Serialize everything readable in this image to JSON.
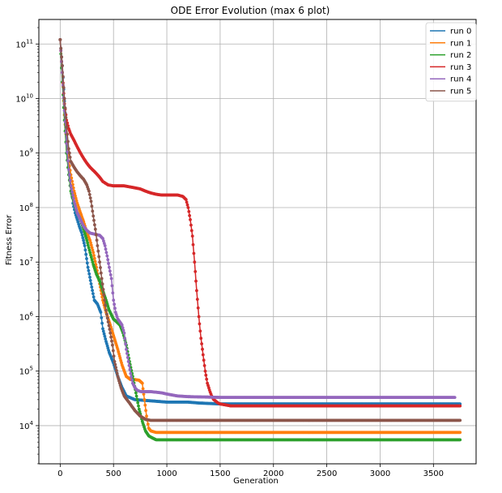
{
  "chart_data": {
    "type": "line",
    "title": "ODE Error Evolution (max 6 plot)",
    "xlabel": "Generation",
    "ylabel": "Fitness Error",
    "xlim": [
      -200,
      3900
    ],
    "ylim_log10": [
      3.3,
      11.45
    ],
    "y_scale": "log",
    "grid": true,
    "legend_position": "top-right",
    "xticks": [
      0,
      500,
      1000,
      1500,
      2000,
      2500,
      3000,
      3500
    ],
    "xtick_labels": [
      "0",
      "500",
      "1000",
      "1500",
      "2000",
      "2500",
      "3000",
      "3500"
    ],
    "yticks_exponent": [
      4,
      5,
      6,
      7,
      8,
      9,
      10,
      11
    ],
    "ytick_base": "10",
    "series": [
      {
        "name": "run 0",
        "color": "#1f77b4",
        "x": [
          0,
          20,
          40,
          60,
          80,
          100,
          120,
          140,
          160,
          180,
          200,
          230,
          260,
          290,
          320,
          350,
          380,
          400,
          430,
          460,
          500,
          540,
          580,
          620,
          700,
          800,
          900,
          1000,
          1100,
          1200,
          1300,
          1500,
          2000,
          2500,
          3000,
          3500,
          3750
        ],
        "y": [
          120000000000.0,
          40000000000.0,
          9000000000.0,
          2000000000.0,
          600000000.0,
          250000000.0,
          120000000.0,
          80000000.0,
          60000000.0,
          45000000.0,
          35000000.0,
          20000000.0,
          8000000.0,
          4000000.0,
          2000000.0,
          1700000.0,
          1200000.0,
          600000.0,
          350000.0,
          220000.0,
          140000.0,
          80000.0,
          50000.0,
          35000.0,
          30000.0,
          29000.0,
          28000.0,
          27000.0,
          27000.0,
          27000.0,
          26000.0,
          25000.0,
          25000.0,
          25000.0,
          25000.0,
          25000.0,
          25000.0
        ]
      },
      {
        "name": "run 1",
        "color": "#ff7f0e",
        "x": [
          0,
          20,
          40,
          60,
          80,
          100,
          130,
          160,
          190,
          220,
          250,
          280,
          310,
          340,
          370,
          400,
          430,
          470,
          500,
          540,
          580,
          620,
          660,
          700,
          740,
          770,
          790,
          810,
          830,
          850,
          900,
          1000,
          1500,
          2000,
          2500,
          3000,
          3500,
          3750
        ],
        "y": [
          120000000000.0,
          30000000000.0,
          5000000000.0,
          1500000000.0,
          700000000.0,
          400000000.0,
          200000000.0,
          120000000.0,
          80000000.0,
          55000000.0,
          35000000.0,
          25000000.0,
          15000000.0,
          8000000.0,
          4000000.0,
          2000000.0,
          1200000.0,
          700000.0,
          450000.0,
          250000.0,
          130000.0,
          80000.0,
          70000.0,
          70000.0,
          68000.0,
          60000.0,
          30000.0,
          15000.0,
          9000.0,
          8000.0,
          7500.0,
          7500.0,
          7500.0,
          7500.0,
          7500.0,
          7500.0,
          7500.0,
          7500.0
        ]
      },
      {
        "name": "run 2",
        "color": "#2ca02c",
        "x": [
          0,
          20,
          40,
          60,
          80,
          100,
          130,
          160,
          190,
          220,
          250,
          280,
          310,
          340,
          370,
          400,
          430,
          460,
          500,
          530,
          560,
          590,
          620,
          650,
          680,
          710,
          740,
          770,
          800,
          830,
          860,
          900,
          950,
          1000,
          1500,
          2000,
          2500,
          3000,
          3500,
          3750
        ],
        "y": [
          120000000000.0,
          20000000000.0,
          4000000000.0,
          1000000000.0,
          400000000.0,
          200000000.0,
          120000000.0,
          80000000.0,
          60000000.0,
          40000000.0,
          25000000.0,
          15000000.0,
          9000000.0,
          6000000.0,
          4500000.0,
          3000000.0,
          2000000.0,
          1300000.0,
          900000.0,
          800000.0,
          700000.0,
          500000.0,
          300000.0,
          150000.0,
          80000.0,
          40000.0,
          20000.0,
          12000.0,
          8000.0,
          6500.0,
          6000.0,
          5500.0,
          5500.0,
          5500.0,
          5500.0,
          5500.0,
          5500.0,
          5500.0,
          5500.0,
          5500.0
        ]
      },
      {
        "name": "run 3",
        "color": "#d62728",
        "x": [
          0,
          20,
          40,
          60,
          80,
          100,
          130,
          160,
          190,
          220,
          250,
          280,
          310,
          340,
          370,
          400,
          450,
          500,
          550,
          600,
          650,
          700,
          750,
          800,
          850,
          900,
          950,
          1000,
          1050,
          1100,
          1150,
          1180,
          1200,
          1220,
          1240,
          1260,
          1280,
          1300,
          1320,
          1340,
          1360,
          1380,
          1400,
          1420,
          1440,
          1460,
          1480,
          1500,
          1550,
          1600,
          2000,
          2500,
          3000,
          3500,
          3750
        ],
        "y": [
          120000000000.0,
          30000000000.0,
          8000000000.0,
          4000000000.0,
          2800000000.0,
          2200000000.0,
          1700000000.0,
          1300000000.0,
          1000000000.0,
          800000000.0,
          650000000.0,
          550000000.0,
          480000000.0,
          420000000.0,
          360000000.0,
          300000000.0,
          260000000.0,
          250000000.0,
          250000000.0,
          250000000.0,
          240000000.0,
          230000000.0,
          220000000.0,
          200000000.0,
          185000000.0,
          175000000.0,
          170000000.0,
          170000000.0,
          170000000.0,
          170000000.0,
          160000000.0,
          140000000.0,
          100000000.0,
          60000000.0,
          30000000.0,
          10000000.0,
          3000000.0,
          1000000.0,
          400000.0,
          200000.0,
          100000.0,
          60000.0,
          45000.0,
          35000.0,
          30000.0,
          28000.0,
          26000.0,
          25000.0,
          24000.0,
          23000.0,
          23000.0,
          23000.0,
          23000.0,
          23000.0,
          23000.0
        ]
      },
      {
        "name": "run 4",
        "color": "#9467bd",
        "x": [
          0,
          20,
          40,
          60,
          80,
          100,
          130,
          160,
          190,
          220,
          250,
          280,
          310,
          340,
          370,
          400,
          420,
          440,
          460,
          480,
          500,
          520,
          540,
          560,
          580,
          600,
          620,
          640,
          660,
          680,
          700,
          720,
          740,
          760,
          800,
          850,
          900,
          950,
          1000,
          1100,
          1200,
          1500,
          2000,
          2500,
          3000,
          3500,
          3700
        ],
        "y": [
          120000000000.0,
          30000000000.0,
          6000000000.0,
          1500000000.0,
          500000000.0,
          250000000.0,
          130000000.0,
          80000000.0,
          60000000.0,
          45000000.0,
          38000000.0,
          34000000.0,
          33000000.0,
          32000000.0,
          31000000.0,
          27000000.0,
          20000000.0,
          13000000.0,
          8000000.0,
          5000000.0,
          2000000.0,
          1200000.0,
          900000.0,
          800000.0,
          700000.0,
          500000.0,
          250000.0,
          150000.0,
          90000.0,
          60000.0,
          50000.0,
          45000.0,
          43000.0,
          42000.0,
          42000.0,
          42000.0,
          41000.0,
          40000.0,
          38000.0,
          35000.0,
          34000.0,
          33000.0,
          33000.0,
          33000.0,
          33000.0,
          33000.0,
          33000.0
        ]
      },
      {
        "name": "run 5",
        "color": "#8c564b",
        "x": [
          0,
          20,
          40,
          60,
          80,
          100,
          130,
          160,
          190,
          220,
          250,
          270,
          290,
          310,
          330,
          350,
          370,
          390,
          410,
          430,
          450,
          470,
          490,
          510,
          540,
          570,
          600,
          650,
          700,
          750,
          800,
          850,
          900,
          1000,
          1500,
          2000,
          2500,
          3000,
          3500,
          3750
        ],
        "y": [
          120000000000.0,
          40000000000.0,
          10000000000.0,
          3000000000.0,
          1200000000.0,
          700000000.0,
          550000000.0,
          450000000.0,
          380000000.0,
          330000000.0,
          260000000.0,
          200000000.0,
          130000000.0,
          70000000.0,
          40000000.0,
          20000000.0,
          10000000.0,
          5000000.0,
          2500000.0,
          1300000.0,
          800000.0,
          500000.0,
          300000.0,
          150000.0,
          80000.0,
          50000.0,
          35000.0,
          26000.0,
          19000.0,
          15000.0,
          13000.0,
          12500.0,
          12500.0,
          12500.0,
          12500.0,
          12500.0,
          12500.0,
          12500.0,
          12500.0,
          12500.0
        ]
      }
    ]
  }
}
